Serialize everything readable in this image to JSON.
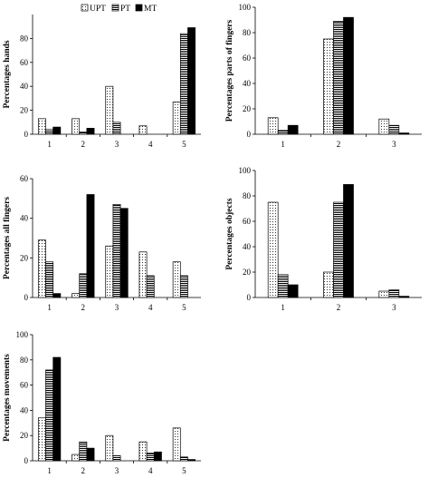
{
  "legend": [
    {
      "name": "UPT",
      "pattern": "dots"
    },
    {
      "name": "PT",
      "pattern": "stripes"
    },
    {
      "name": "MT",
      "pattern": "solid"
    }
  ],
  "chart_data": [
    {
      "type": "bar",
      "ylabel": "Percentages hands",
      "ylim": [
        0,
        100
      ],
      "yticks": [
        0,
        20,
        40,
        60,
        80
      ],
      "categories": [
        "1",
        "2",
        "3",
        "4",
        "5"
      ],
      "series": [
        {
          "name": "UPT",
          "values": [
            13,
            13,
            40,
            7,
            27
          ]
        },
        {
          "name": "PT",
          "values": [
            4,
            2,
            10,
            0,
            84
          ]
        },
        {
          "name": "MT",
          "values": [
            6,
            5,
            0,
            0,
            89
          ]
        }
      ]
    },
    {
      "type": "bar",
      "ylabel": "Percentages parts of fingers",
      "ylim": [
        0,
        100
      ],
      "yticks": [
        0,
        20,
        40,
        60,
        80,
        100
      ],
      "categories": [
        "1",
        "2",
        "3"
      ],
      "series": [
        {
          "name": "UPT",
          "values": [
            13,
            75,
            12
          ]
        },
        {
          "name": "PT",
          "values": [
            3,
            89,
            7
          ]
        },
        {
          "name": "MT",
          "values": [
            7,
            92,
            1
          ]
        }
      ]
    },
    {
      "type": "bar",
      "ylabel": "Percentages all fingers",
      "ylim": [
        0,
        60
      ],
      "yticks": [
        0,
        20,
        40,
        60
      ],
      "categories": [
        "1",
        "2",
        "3",
        "4",
        "5"
      ],
      "series": [
        {
          "name": "UPT",
          "values": [
            29,
            2,
            26,
            23,
            18
          ]
        },
        {
          "name": "PT",
          "values": [
            18,
            12,
            47,
            11,
            11
          ]
        },
        {
          "name": "MT",
          "values": [
            2,
            52,
            45,
            0,
            0
          ]
        }
      ]
    },
    {
      "type": "bar",
      "ylabel": "Percentages objects",
      "ylim": [
        0,
        100
      ],
      "yticks": [
        0,
        20,
        40,
        60,
        80,
        100
      ],
      "categories": [
        "1",
        "2",
        "3"
      ],
      "series": [
        {
          "name": "UPT",
          "values": [
            75,
            20,
            5
          ]
        },
        {
          "name": "PT",
          "values": [
            18,
            75,
            6
          ]
        },
        {
          "name": "MT",
          "values": [
            10,
            89,
            1
          ]
        }
      ]
    },
    {
      "type": "bar",
      "ylabel": "Percentages movements",
      "ylim": [
        0,
        100
      ],
      "yticks": [
        0,
        20,
        40,
        60,
        80,
        100
      ],
      "categories": [
        "1",
        "2",
        "3",
        "4",
        "5"
      ],
      "series": [
        {
          "name": "UPT",
          "values": [
            34,
            5,
            20,
            15,
            26
          ]
        },
        {
          "name": "PT",
          "values": [
            72,
            15,
            4,
            6,
            3
          ]
        },
        {
          "name": "MT",
          "values": [
            82,
            10,
            0,
            7,
            1
          ]
        }
      ]
    }
  ]
}
